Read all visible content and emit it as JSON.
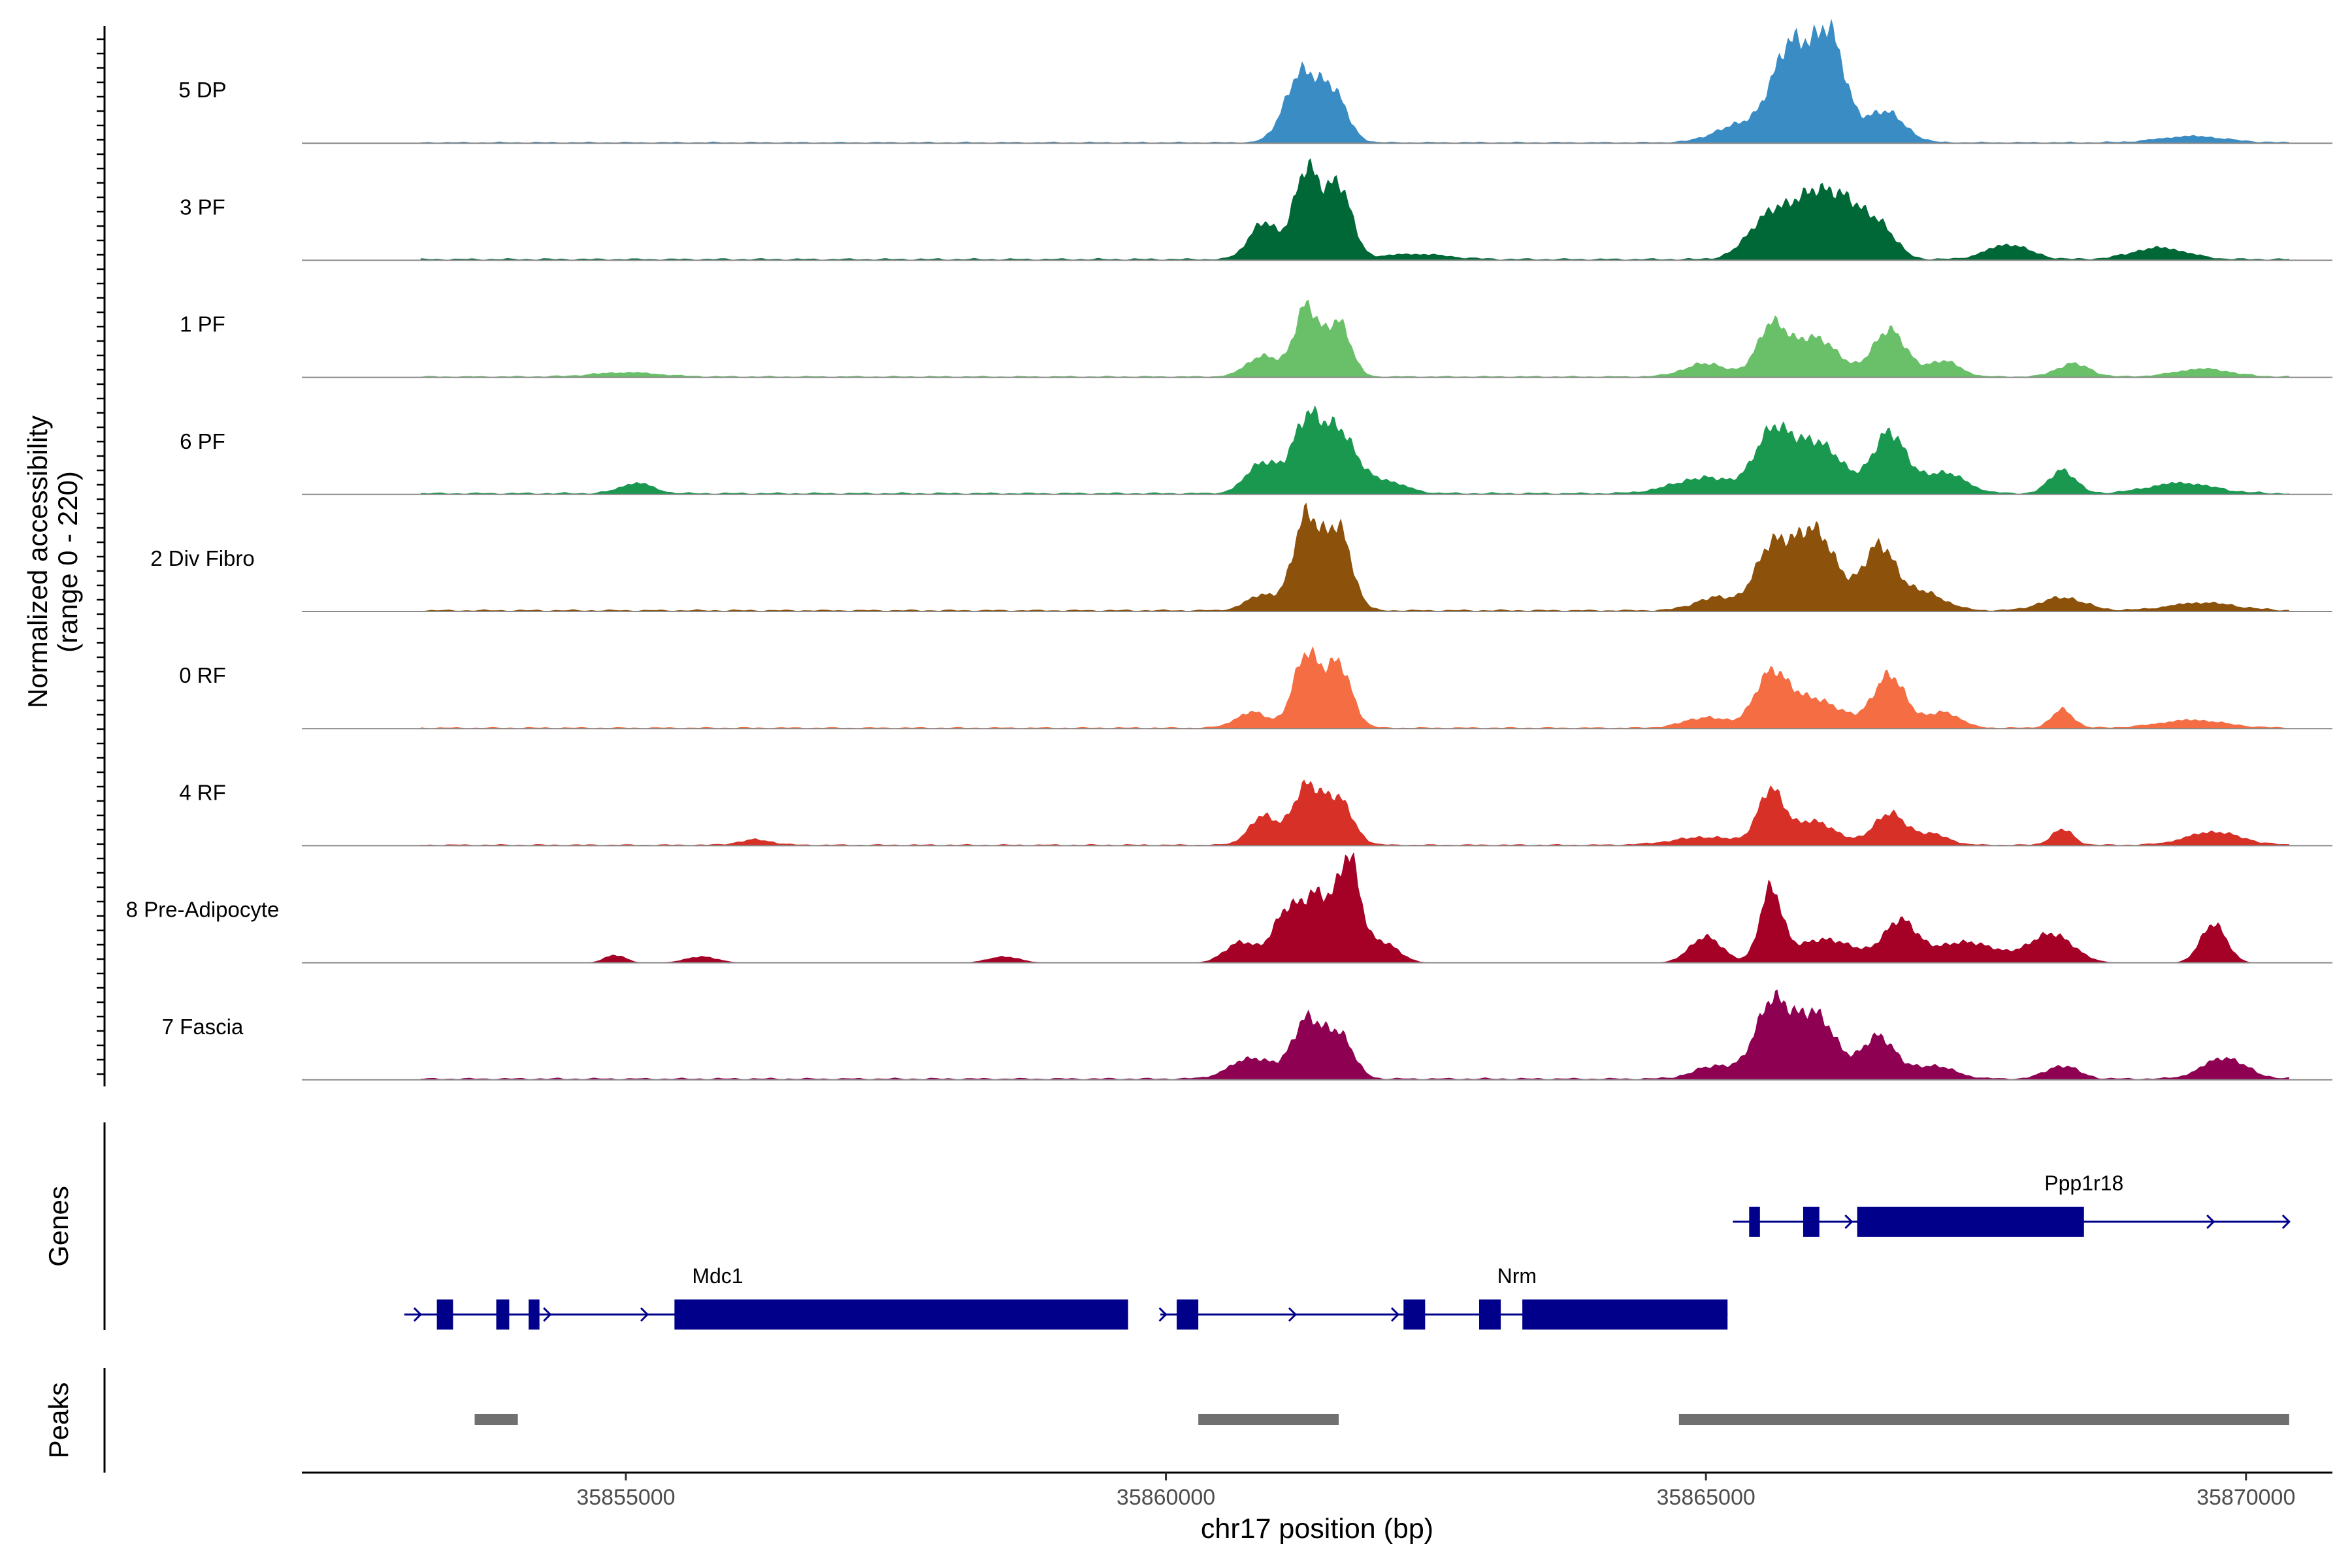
{
  "chart_data": {
    "type": "area",
    "title": "",
    "chromosome": "chr17",
    "xlabel": "chr17 position (bp)",
    "ylabel_line1": "Normalized accessibility",
    "ylabel_line2": "(range 0 - 220)",
    "y_range": [
      0,
      220
    ],
    "xlim": [
      35852000,
      35870800
    ],
    "region": [
      35853100,
      35870400
    ],
    "x_ticks": [
      35855000,
      35860000,
      35865000,
      35870000
    ],
    "x_tick_labels": [
      "35855000",
      "35860000",
      "35865000",
      "35870000"
    ],
    "tracks": [
      {
        "name": "5 DP",
        "color": "#3a8cc5",
        "bg": 3,
        "peaks": [
          [
            35861250,
            130,
            150
          ],
          [
            35861550,
            90,
            130
          ],
          [
            35865500,
            30,
            250
          ],
          [
            35865800,
            175,
            170
          ],
          [
            35866150,
            195,
            140
          ],
          [
            35866650,
            60,
            180
          ],
          [
            35865200,
            15,
            200
          ],
          [
            35869500,
            12,
            300
          ]
        ]
      },
      {
        "name": "3 PF",
        "color": "#006837",
        "bg": 4,
        "peaks": [
          [
            35860900,
            70,
            130
          ],
          [
            35861300,
            170,
            120
          ],
          [
            35861600,
            140,
            120
          ],
          [
            35865600,
            85,
            200
          ],
          [
            35866000,
            110,
            180
          ],
          [
            35866300,
            85,
            150
          ],
          [
            35866600,
            65,
            150
          ],
          [
            35867800,
            28,
            200
          ],
          [
            35869200,
            22,
            250
          ],
          [
            35862300,
            10,
            300
          ]
        ]
      },
      {
        "name": "1 PF",
        "color": "#6abf69",
        "bg": 3,
        "peaks": [
          [
            35860900,
            40,
            150
          ],
          [
            35861300,
            135,
            110
          ],
          [
            35861600,
            105,
            110
          ],
          [
            35865000,
            25,
            200
          ],
          [
            35865600,
            90,
            130
          ],
          [
            35866000,
            75,
            220
          ],
          [
            35866700,
            90,
            150
          ],
          [
            35867200,
            30,
            150
          ],
          [
            35868400,
            25,
            150
          ],
          [
            35869600,
            15,
            250
          ],
          [
            35855000,
            8,
            300
          ]
        ]
      },
      {
        "name": "6 PF",
        "color": "#1a9850",
        "bg": 4,
        "peaks": [
          [
            35860900,
            60,
            150
          ],
          [
            35861300,
            135,
            130
          ],
          [
            35861600,
            115,
            150
          ],
          [
            35862000,
            25,
            200
          ],
          [
            35865000,
            30,
            300
          ],
          [
            35865600,
            95,
            150
          ],
          [
            35866000,
            100,
            250
          ],
          [
            35866700,
            115,
            150
          ],
          [
            35867200,
            40,
            200
          ],
          [
            35868300,
            45,
            120
          ],
          [
            35869400,
            20,
            300
          ],
          [
            35855100,
            20,
            150
          ]
        ]
      },
      {
        "name": "2 Div Fibro",
        "color": "#8c510a",
        "bg": 4,
        "peaks": [
          [
            35860900,
            30,
            150
          ],
          [
            35861300,
            180,
            120
          ],
          [
            35861600,
            155,
            120
          ],
          [
            35865100,
            25,
            200
          ],
          [
            35865600,
            110,
            150
          ],
          [
            35866000,
            155,
            200
          ],
          [
            35866600,
            120,
            150
          ],
          [
            35867000,
            35,
            200
          ],
          [
            35868300,
            25,
            200
          ],
          [
            35869600,
            15,
            300
          ]
        ]
      },
      {
        "name": "0 RF",
        "color": "#f46d43",
        "bg": 3,
        "peaks": [
          [
            35860800,
            30,
            150
          ],
          [
            35861300,
            140,
            120
          ],
          [
            35861600,
            120,
            120
          ],
          [
            35865000,
            20,
            200
          ],
          [
            35865600,
            95,
            150
          ],
          [
            35866000,
            55,
            250
          ],
          [
            35866700,
            100,
            150
          ],
          [
            35867200,
            30,
            150
          ],
          [
            35868300,
            35,
            100
          ],
          [
            35869500,
            15,
            300
          ]
        ]
      },
      {
        "name": "4 RF",
        "color": "#d73027",
        "bg": 3,
        "peaks": [
          [
            35860900,
            55,
            130
          ],
          [
            35861300,
            110,
            130
          ],
          [
            35861600,
            85,
            130
          ],
          [
            35865000,
            15,
            300
          ],
          [
            35865600,
            100,
            120
          ],
          [
            35866000,
            45,
            200
          ],
          [
            35866700,
            60,
            150
          ],
          [
            35867100,
            20,
            150
          ],
          [
            35868300,
            30,
            100
          ],
          [
            35869700,
            25,
            250
          ],
          [
            35856200,
            10,
            150
          ]
        ]
      },
      {
        "name": "8 Pre-Adipocyte",
        "color": "#a50026",
        "bg": 0,
        "peaks": [
          [
            35860700,
            40,
            150
          ],
          [
            35861100,
            85,
            120
          ],
          [
            35861400,
            130,
            150
          ],
          [
            35861700,
            185,
            100
          ],
          [
            35862000,
            40,
            150
          ],
          [
            35865000,
            50,
            150
          ],
          [
            35865600,
            135,
            100
          ],
          [
            35866100,
            45,
            300
          ],
          [
            35866800,
            75,
            150
          ],
          [
            35867400,
            40,
            300
          ],
          [
            35868200,
            55,
            200
          ],
          [
            35869700,
            75,
            120
          ],
          [
            35854900,
            15,
            100
          ],
          [
            35855700,
            12,
            150
          ],
          [
            35858500,
            12,
            150
          ]
        ]
      },
      {
        "name": "7 Fascia",
        "color": "#8e0152",
        "bg": 4,
        "peaks": [
          [
            35860800,
            40,
            200
          ],
          [
            35861300,
            110,
            130
          ],
          [
            35861600,
            85,
            130
          ],
          [
            35865100,
            25,
            200
          ],
          [
            35865600,
            135,
            150
          ],
          [
            35866000,
            125,
            200
          ],
          [
            35866600,
            80,
            150
          ],
          [
            35867100,
            25,
            200
          ],
          [
            35868300,
            25,
            150
          ],
          [
            35869800,
            40,
            200
          ]
        ]
      }
    ],
    "genes_label": "Genes",
    "genes": [
      {
        "name": "Mdc1",
        "start": 35853100,
        "end": 35859650,
        "exons": [
          [
            35853250,
            35853400
          ],
          [
            35853800,
            35853920
          ],
          [
            35854100,
            35854200
          ],
          [
            35855450,
            35859650
          ]
        ],
        "arrows": [
          35853100,
          35854300,
          35855200,
          35856300,
          35857300
        ]
      },
      {
        "name": "Nrm",
        "start": 35860100,
        "end": 35865200,
        "exons": [
          [
            35860100,
            35860300
          ],
          [
            35862200,
            35862400
          ],
          [
            35862900,
            35863100
          ],
          [
            35863300,
            35865200
          ]
        ],
        "arrows": [
          35860000,
          35861200,
          35862150
        ]
      },
      {
        "name": "Ppp1r18",
        "start": 35865400,
        "end": 35870400,
        "exons": [
          [
            35865400,
            35865500
          ],
          [
            35865900,
            35866050
          ],
          [
            35866400,
            35868500
          ]
        ],
        "arrows": [
          35866350,
          35869700,
          35870400
        ]
      }
    ],
    "peaks_label": "Peaks",
    "peaks": [
      [
        35853600,
        35854000
      ],
      [
        35860300,
        35861600
      ],
      [
        35864750,
        35870400
      ]
    ]
  }
}
